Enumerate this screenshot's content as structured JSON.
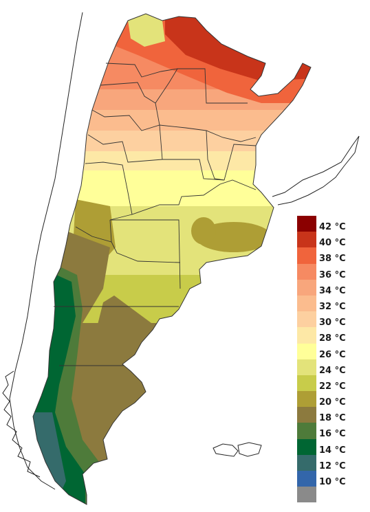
{
  "legend": {
    "items": [
      {
        "label": "42 °C",
        "color": "#8b0000"
      },
      {
        "label": "40 °C",
        "color": "#c8341a"
      },
      {
        "label": "38 °C",
        "color": "#f0643c"
      },
      {
        "label": "36 °C",
        "color": "#f68a62"
      },
      {
        "label": "34 °C",
        "color": "#f8a67c"
      },
      {
        "label": "32 °C",
        "color": "#fbbc8e"
      },
      {
        "label": "30 °C",
        "color": "#fdd0a0"
      },
      {
        "label": "28 °C",
        "color": "#fde8a6"
      },
      {
        "label": "26 °C",
        "color": "#ffff99"
      },
      {
        "label": "24 °C",
        "color": "#e3e37a"
      },
      {
        "label": "22 °C",
        "color": "#c8cc4a"
      },
      {
        "label": "20 °C",
        "color": "#ae9e35"
      },
      {
        "label": "18 °C",
        "color": "#8c7a3e"
      },
      {
        "label": "16 °C",
        "color": "#4e7b3a"
      },
      {
        "label": "14 °C",
        "color": "#006633"
      },
      {
        "label": "12 °C",
        "color": "#356b6b"
      },
      {
        "label": "10 °C",
        "color": "#3366aa"
      },
      {
        "label": "",
        "color": "#8a8a8a"
      }
    ]
  }
}
